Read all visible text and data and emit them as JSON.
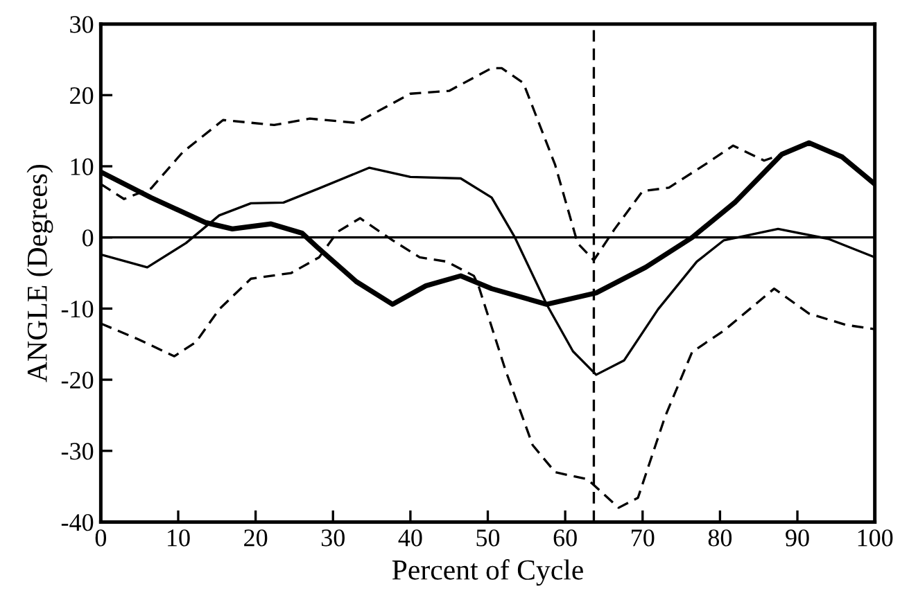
{
  "chart_data": {
    "type": "line",
    "xlabel": "Percent of Cycle",
    "ylabel": "ANGLE (Degrees)",
    "xlim": [
      0,
      100
    ],
    "ylim": [
      -40,
      30
    ],
    "xticks": [
      0,
      10,
      20,
      30,
      40,
      50,
      60,
      70,
      80,
      90,
      100
    ],
    "yticks": [
      -40,
      -30,
      -20,
      -10,
      0,
      10,
      20,
      30
    ],
    "grid": false,
    "legend": false,
    "marker": "none",
    "series": [
      {
        "color": "#000000",
        "line_style": "solid",
        "x": [
          0,
          6.5,
          13.5,
          17,
          22,
          26,
          28,
          33,
          37.7,
          42,
          46.5,
          50.5,
          57.6,
          64,
          70.4,
          76.4,
          82,
          88,
          91.5,
          95.8,
          100
        ],
        "values": [
          9.2,
          5.6,
          2.1,
          1.2,
          1.9,
          0.6,
          -1.4,
          -6.2,
          -9.4,
          -6.8,
          -5.4,
          -7.2,
          -9.4,
          -7.8,
          -4.2,
          0,
          5,
          11.7,
          13.3,
          11.3,
          7.5
        ]
      },
      {
        "color": "#000000",
        "line_style": "solid",
        "x": [
          0,
          6,
          11,
          15.3,
          19.4,
          23.6,
          28.2,
          34.7,
          40,
          46.5,
          50.5,
          53.5,
          57.6,
          61,
          64,
          67.6,
          72,
          77,
          80.5,
          87.5,
          94,
          100
        ],
        "values": [
          -2.4,
          -4.2,
          -0.8,
          3.1,
          4.8,
          4.9,
          6.9,
          9.8,
          8.5,
          8.3,
          5.6,
          0,
          -9.4,
          -16,
          -19.3,
          -17.3,
          -10.1,
          -3.4,
          -0.4,
          1.2,
          -0.2,
          -2.8
        ]
      },
      {
        "color": "#000000",
        "line_style": "dashed",
        "x": [
          0,
          3,
          6.5,
          10.6,
          15.8,
          22.4,
          27,
          33,
          40,
          45,
          50.5,
          51.8,
          54.6,
          58.7,
          61.6,
          63.7,
          66.4,
          70,
          73.4,
          78,
          81.7,
          85.7,
          88,
          91.5,
          95.8,
          100
        ],
        "values": [
          7.5,
          5.4,
          6.9,
          12,
          16.5,
          15.8,
          16.7,
          16.1,
          20.2,
          20.6,
          23.8,
          23.8,
          21.7,
          10.2,
          -0.8,
          -3.2,
          1.2,
          6.5,
          7,
          10.2,
          12.9,
          10.8,
          11.7,
          13.3,
          11.3,
          7.5
        ]
      },
      {
        "color": "#000000",
        "line_style": "dashed",
        "x": [
          0,
          4.8,
          9.5,
          12.3,
          15.3,
          19.4,
          24.6,
          28.2,
          30.6,
          33.5,
          37.7,
          41.2,
          44.7,
          48.2,
          48.8,
          52.3,
          55.8,
          58.7,
          62.9,
          66.9,
          69.4,
          72.9,
          76.4,
          80.5,
          87,
          91.5,
          96.3,
          100
        ],
        "values": [
          -12.1,
          -14.3,
          -16.7,
          -14.7,
          -10.1,
          -5.8,
          -5,
          -2.8,
          0.8,
          2.7,
          -0.4,
          -2.8,
          -3.4,
          -5.4,
          -6.8,
          -18.7,
          -29.2,
          -33,
          -34,
          -38,
          -36.6,
          -25.2,
          -16.1,
          -13.1,
          -7.2,
          -10.7,
          -12.3,
          -12.9
        ]
      }
    ],
    "ref_lines": [
      {
        "axis": "y",
        "value": 0,
        "line_style": "solid",
        "color": "#000000"
      },
      {
        "axis": "x",
        "value": 63.7,
        "line_style": "dashed",
        "color": "#000000"
      }
    ]
  }
}
